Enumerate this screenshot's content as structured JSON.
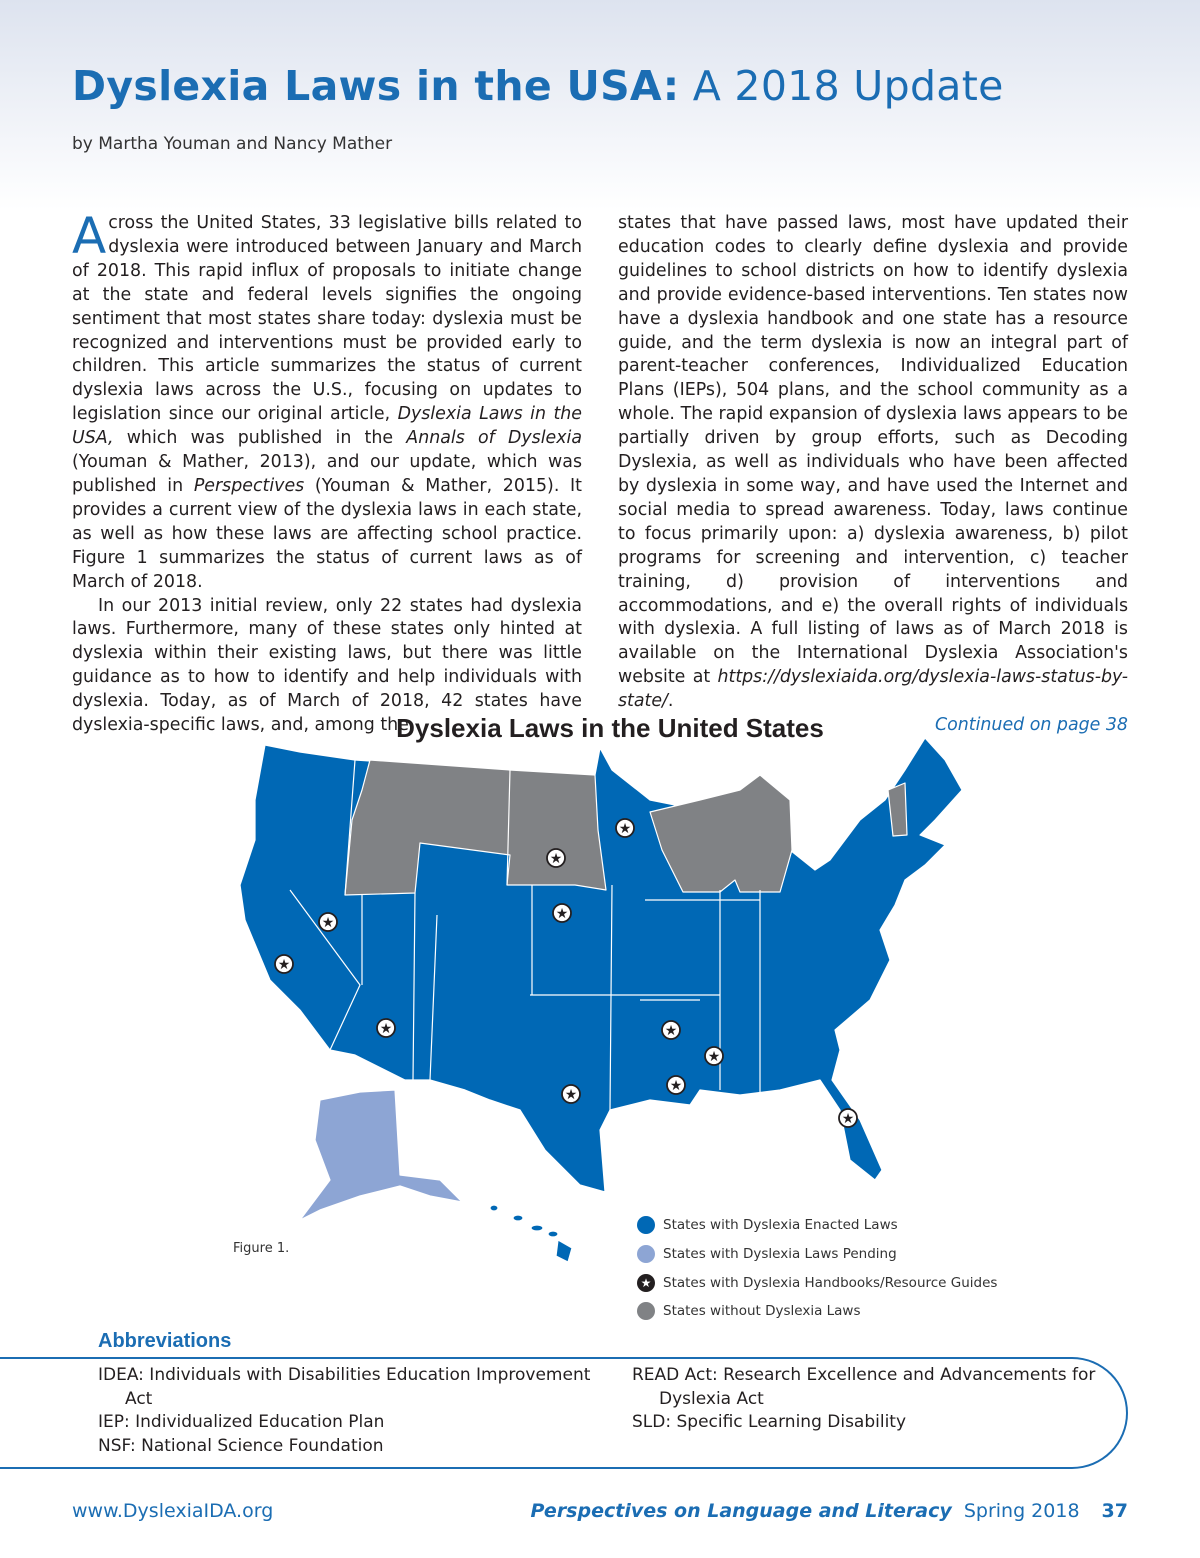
{
  "header": {
    "title_bold": "Dyslexia Laws in the USA:",
    "title_light": "A 2018 Update",
    "byline": "by Martha Youman and Nancy Mather"
  },
  "article": {
    "dropcap": "A",
    "p1_start": "cross the United States, 33 legislative bills related to dyslexia were introduced between January and March of 2018. This rapid influx of proposals to initiate change at the state and federal levels signifies the ongoing sentiment that most states share today: dyslexia must be recognized and interventions must be provided early to children. This article summarizes the status of current dyslexia laws across the U.S., focusing on updates to legislation since our original article, ",
    "p1_italic1": "Dyslexia Laws in the USA,",
    "p1_mid1": " which was published in the ",
    "p1_italic2": "Annals of Dyslexia",
    "p1_mid2": " (Youman & Mather, 2013), and our update, which was published in ",
    "p1_italic3": "Perspectives",
    "p1_end": " (Youman & Mather, 2015). It provides a current view of the dyslexia laws in each state, as well as how these laws are affecting school practice. Figure 1 summarizes the status of current laws as of March of 2018.",
    "p2": "In our 2013 initial review, only 22 states had dyslexia laws. Furthermore, many of these states only hinted at dyslexia within their existing laws, but there was little guidance as to how to identify and help individuals with dyslexia. Today, as of March of 2018, 42 states have dyslexia-specific laws, and, among the",
    "col2_text": "states that have passed laws, most have updated their education codes to clearly define dyslexia and provide guidelines to school districts on how to identify dyslexia and provide evidence-based interventions. Ten states now have a dyslexia handbook and one state has a resource guide, and the term dyslexia is now an integral part of parent-teacher conferences, Individualized Education Plans (IEPs), 504 plans, and the school community as a whole. The rapid expansion of dyslexia laws appears to be partially driven by group efforts, such as Decoding Dyslexia, as well as individuals who have been affected by dyslexia in some way, and have used the Internet and social media to spread awareness. Today, laws continue to focus primarily upon: a) dyslexia awareness, b) pilot programs for screening and intervention, c) teacher training, d) provision of interventions and accommodations, and e) the overall rights of individuals with dyslexia. A full listing of laws as of March 2018 is available on the International Dyslexia Association's website at ",
    "col2_link": "https://dyslexiaida.org/dyslexia-laws-status-by-state/",
    "col2_end": ".",
    "continued": "Continued on page 38"
  },
  "figure": {
    "title": "Dyslexia Laws in the United States",
    "caption": "Figure 1.",
    "colors": {
      "enacted": "#0068b5",
      "pending": "#8da5d4",
      "none": "#808285",
      "border": "#ffffff"
    },
    "legend": [
      {
        "label": "States with Dyslexia Enacted Laws",
        "icon": "filled-circle",
        "color": "#0068b5"
      },
      {
        "label": "States with Dyslexia Laws Pending",
        "icon": "filled-circle",
        "color": "#8da5d4"
      },
      {
        "label": "States with Dyslexia Handbooks/Resource Guides",
        "icon": "star-in-circle",
        "color": "#231f20"
      },
      {
        "label": "States without Dyslexia Laws",
        "icon": "filled-circle",
        "color": "#808285"
      }
    ]
  },
  "abbreviations": {
    "heading": "Abbreviations",
    "left": [
      {
        "term": "IDEA: Individuals with Disabilities Education Improvement",
        "cont": "Act"
      },
      {
        "term": "IEP: Individualized Education Plan"
      },
      {
        "term": "NSF: National Science Foundation"
      }
    ],
    "right": [
      {
        "term": "READ Act: Research Excellence and Advancements for",
        "cont": "Dyslexia Act"
      },
      {
        "term": "SLD: Specific Learning Disability"
      }
    ]
  },
  "footer": {
    "website": "www.DyslexiaIDA.org",
    "journal": "Perspectives on Language and Literacy",
    "issue": "Spring 2018",
    "page": "37"
  }
}
